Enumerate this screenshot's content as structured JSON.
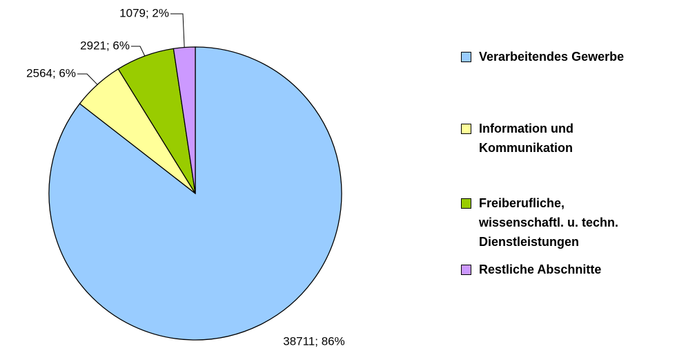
{
  "chart_data": {
    "type": "pie",
    "categories": [
      "Verarbeitendes Gewerbe",
      "Information und Kommunikation",
      "Freiberufliche, wissenschaftl. u. techn. Dienstleistungen",
      "Restliche Abschnitte"
    ],
    "values": [
      38711,
      2564,
      2921,
      1079
    ],
    "value_labels": [
      "38711; 86%",
      "2564; 6%",
      "2921; 6%",
      "1079; 2%"
    ],
    "colors": [
      "#99ccff",
      "#ffff99",
      "#99cc00",
      "#cc99ff"
    ],
    "legend": "right"
  }
}
